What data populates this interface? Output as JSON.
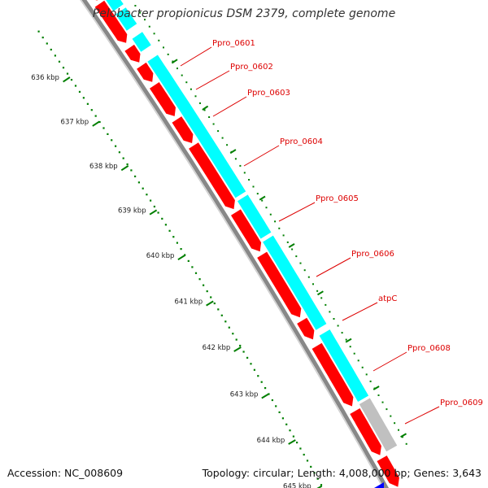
{
  "title": "Pelobacter propionicus DSM 2379, complete genome",
  "footer": {
    "accession": "Accession: NC_008609",
    "topology": "Topology: circular; Length: 4,008,000 bp; Genes: 3,643"
  },
  "ruler": {
    "labels": [
      "636 kbp",
      "637 kbp",
      "638 kbp",
      "639 kbp",
      "640 kbp",
      "641 kbp",
      "642 kbp",
      "643 kbp",
      "644 kbp",
      "645 kbp"
    ]
  },
  "genes": [
    {
      "label": "Ppro_0601"
    },
    {
      "label": "Ppro_0602"
    },
    {
      "label": "Ppro_0603"
    },
    {
      "label": "Ppro_0604"
    },
    {
      "label": "Ppro_0605"
    },
    {
      "label": "Ppro_0606"
    },
    {
      "label": "atpC"
    },
    {
      "label": "Ppro_0608"
    },
    {
      "label": "Ppro_0609"
    }
  ],
  "colors": {
    "cds": "#ff0000",
    "feature": "#00ffff",
    "other": "#c0c0c0",
    "backbone": "#888888",
    "tick": "#007f00",
    "label": "#dd0000",
    "marker": "#0000ff"
  }
}
